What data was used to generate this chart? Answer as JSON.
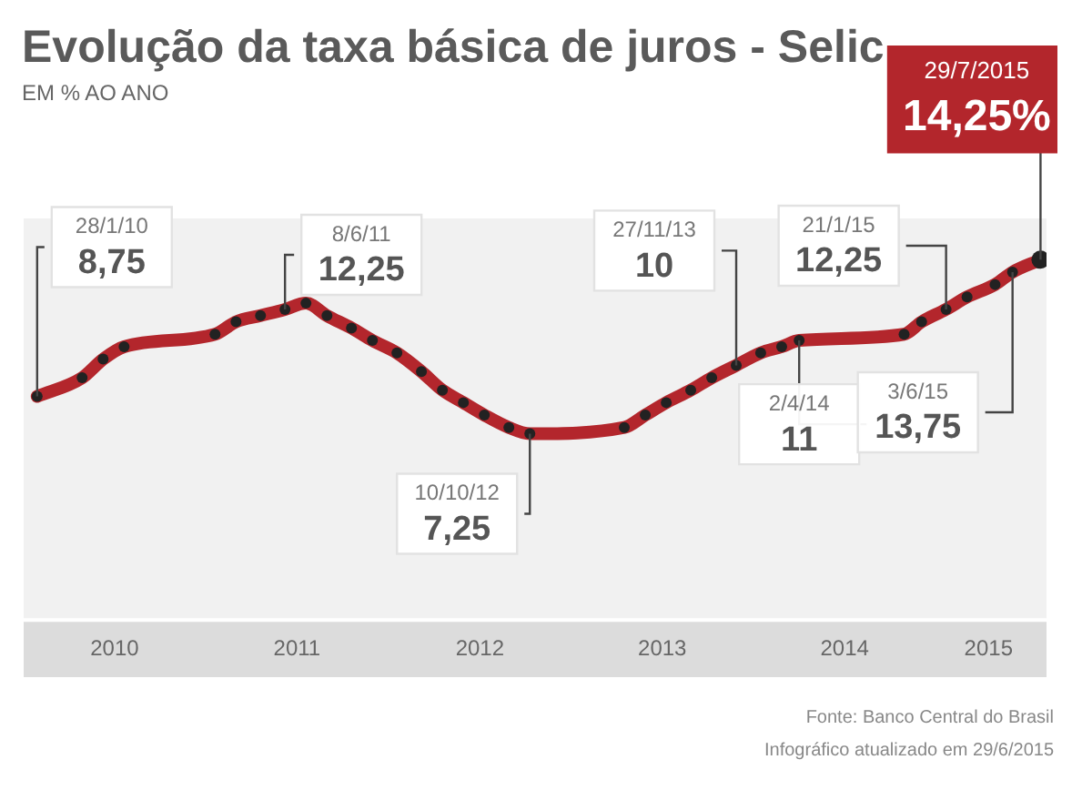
{
  "chart_data": {
    "type": "line",
    "title": "Evolução da taxa básica de juros - Selic",
    "subtitle": "EM % AO ANO",
    "x": [
      "2010-01-28",
      "2010-04-28",
      "2010-06-09",
      "2010-07-21",
      "2011-01-19",
      "2011-03-02",
      "2011-04-20",
      "2011-06-08",
      "2011-07-20",
      "2011-08-31",
      "2011-10-19",
      "2011-11-30",
      "2012-01-18",
      "2012-03-07",
      "2012-04-18",
      "2012-05-30",
      "2012-07-11",
      "2012-08-29",
      "2012-10-10",
      "2013-04-17",
      "2013-05-29",
      "2013-07-10",
      "2013-08-28",
      "2013-10-09",
      "2013-11-27",
      "2014-01-15",
      "2014-02-26",
      "2014-04-02",
      "2014-10-29",
      "2014-12-03",
      "2015-01-21",
      "2015-03-04",
      "2015-04-29",
      "2015-06-03",
      "2015-07-29"
    ],
    "series": [
      {
        "color": "#b3262c",
        "values": [
          8.75,
          9.5,
          10.25,
          10.75,
          11.25,
          11.75,
          12,
          12.25,
          12.5,
          12,
          11.5,
          11,
          10.5,
          9.75,
          9,
          8.5,
          8,
          7.5,
          7.25,
          7.5,
          8,
          8.5,
          9,
          9.5,
          10,
          10.5,
          10.75,
          11,
          11.25,
          11.75,
          12.25,
          12.75,
          13.25,
          13.75,
          14.25
        ],
        "value_labels": [
          "8,75",
          null,
          null,
          null,
          null,
          null,
          null,
          "12,25",
          null,
          null,
          null,
          null,
          null,
          null,
          null,
          null,
          null,
          null,
          "7,25",
          null,
          null,
          null,
          null,
          null,
          "10",
          null,
          null,
          "11",
          null,
          null,
          "12,25",
          null,
          null,
          "13,75",
          "14,25%"
        ]
      }
    ],
    "xlim": [
      "2010-01-01",
      "2015-08-10"
    ],
    "xticks": [
      {
        "value": "2010-07-02",
        "label": "2010"
      },
      {
        "value": "2011-07-02",
        "label": "2011"
      },
      {
        "value": "2012-07-02",
        "label": "2012"
      },
      {
        "value": "2013-07-02",
        "label": "2013"
      },
      {
        "value": "2014-07-02",
        "label": "2014"
      },
      {
        "value": "2015-04-16",
        "label": "2015"
      }
    ],
    "tick_labels": "x",
    "grid": false,
    "legend": false,
    "marker": "circle",
    "line_style": "solid",
    "annotations": [
      "28/1/10",
      "8/6/11",
      "10/10/12",
      "27/11/13",
      "2/4/14",
      "21/1/15",
      "3/6/15",
      "29/7/2015",
      "Fonte: Banco Central do Brasil",
      "Infográfico atualizado em 29/6/2015"
    ]
  }
}
